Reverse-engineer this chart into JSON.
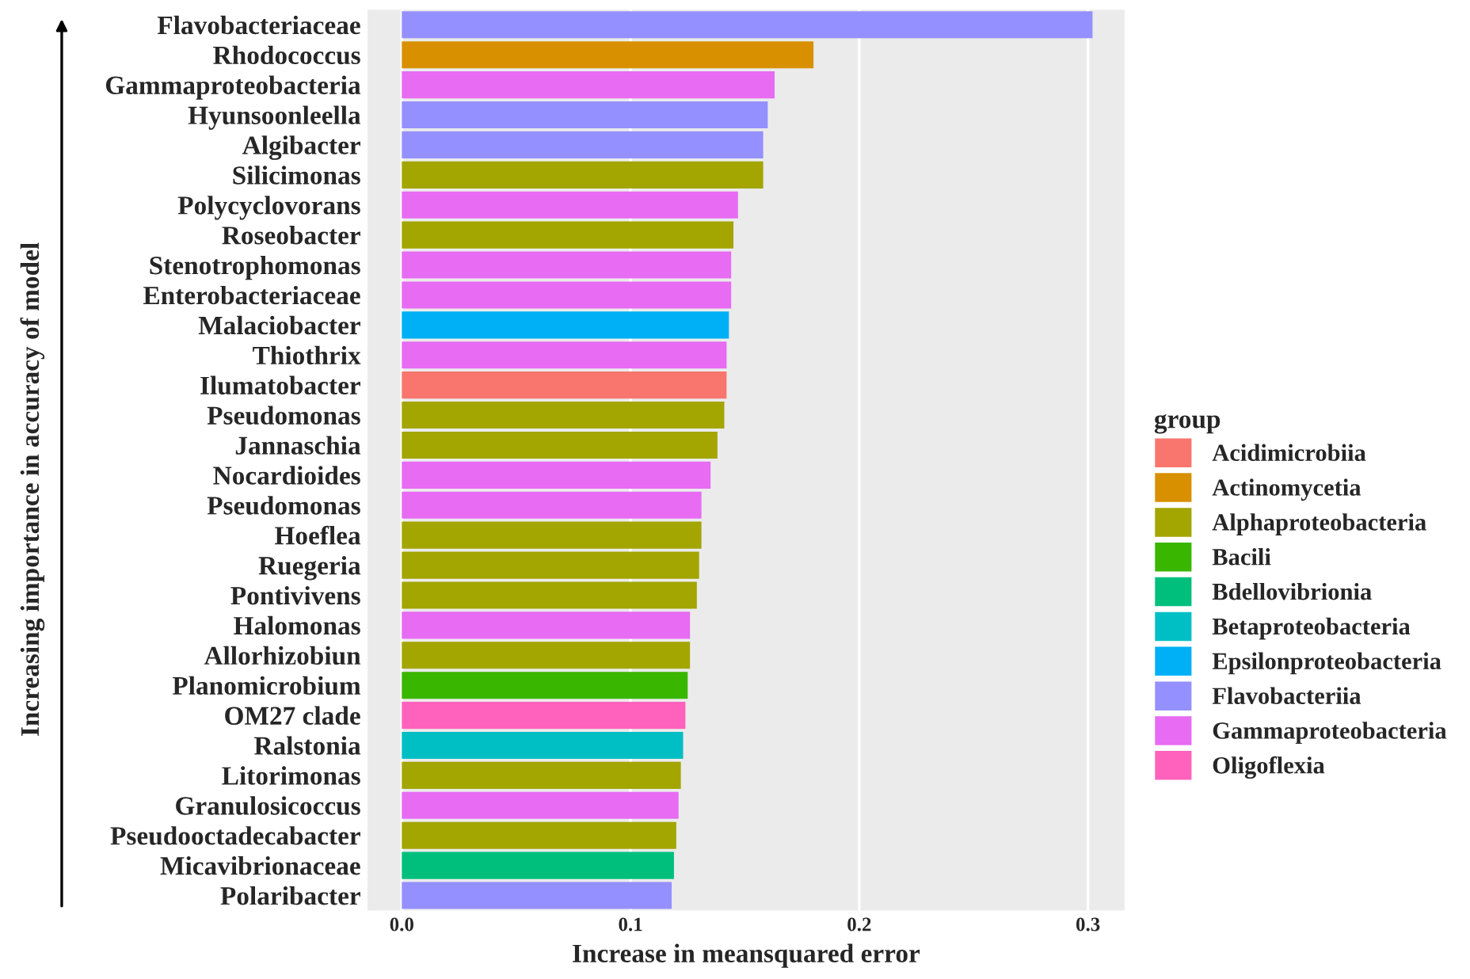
{
  "chart_data": {
    "type": "bar",
    "orientation": "horizontal",
    "xlabel": "Increase in meansquared error",
    "ylabel": "Increasing importance in accuracy of model",
    "legend_title": "group",
    "legend": "right",
    "grid": "x",
    "categories": [
      "Flavobacteriaceae",
      "Rhodococcus",
      "Gammaproteobacteria",
      "Hyunsoonleella",
      "Algibacter",
      "Silicimonas",
      "Polycyclovorans",
      "Roseobacter",
      "Stenotrophomonas",
      "Enterobacteriaceae",
      "Malaciobacter",
      "Thiothrix",
      "Ilumatobacter",
      "Pseudomonas",
      "Jannaschia",
      "Nocardioides",
      "Pseudomonas",
      "Hoeflea",
      "Ruegeria",
      "Pontivivens",
      "Halomonas",
      "Allorhizobiun",
      "Planomicrobium",
      "OM27 clade",
      "Ralstonia",
      "Litorimonas",
      "Granulosicoccus",
      "Pseudooctadecabacter",
      "Micavibrionaceae",
      "Polaribacter"
    ],
    "xlim": [
      -0.015,
      0.316
    ],
    "xticks": [
      {
        "value": 0,
        "label": "0.0"
      },
      0.1,
      0.2,
      0.3
    ],
    "series": [
      {
        "name": "Acidimicrobiia",
        "color": "#f8766d",
        "values": [
          null,
          null,
          null,
          null,
          null,
          null,
          null,
          null,
          null,
          null,
          null,
          null,
          0.142,
          null,
          null,
          null,
          null,
          null,
          null,
          null,
          null,
          null,
          null,
          null,
          null,
          null,
          null,
          null,
          null,
          null
        ]
      },
      {
        "name": "Actinomycetia",
        "color": "#d89000",
        "values": [
          null,
          0.18,
          null,
          null,
          null,
          null,
          null,
          null,
          null,
          null,
          null,
          null,
          null,
          null,
          null,
          null,
          null,
          null,
          null,
          null,
          null,
          null,
          null,
          null,
          null,
          null,
          null,
          null,
          null,
          null
        ]
      },
      {
        "name": "Alphaproteobacteria",
        "color": "#a3a500",
        "values": [
          null,
          null,
          null,
          null,
          null,
          0.158,
          null,
          0.145,
          null,
          null,
          null,
          null,
          null,
          0.141,
          0.138,
          null,
          null,
          0.131,
          0.13,
          0.129,
          null,
          0.126,
          null,
          null,
          null,
          0.122,
          null,
          0.12,
          null,
          null
        ]
      },
      {
        "name": "Bacili",
        "color": "#39b600",
        "values": [
          null,
          null,
          null,
          null,
          null,
          null,
          null,
          null,
          null,
          null,
          null,
          null,
          null,
          null,
          null,
          null,
          null,
          null,
          null,
          null,
          null,
          null,
          0.125,
          null,
          null,
          null,
          null,
          null,
          null,
          null
        ]
      },
      {
        "name": "Bdellovibrionia",
        "color": "#00bf7d",
        "values": [
          null,
          null,
          null,
          null,
          null,
          null,
          null,
          null,
          null,
          null,
          null,
          null,
          null,
          null,
          null,
          null,
          null,
          null,
          null,
          null,
          null,
          null,
          null,
          null,
          null,
          null,
          null,
          null,
          0.119,
          null
        ]
      },
      {
        "name": "Betaproteobacteria",
        "color": "#00bfc4",
        "values": [
          null,
          null,
          null,
          null,
          null,
          null,
          null,
          null,
          null,
          null,
          null,
          null,
          null,
          null,
          null,
          null,
          null,
          null,
          null,
          null,
          null,
          null,
          null,
          null,
          0.123,
          null,
          null,
          null,
          null,
          null
        ]
      },
      {
        "name": "Epsilonproteobacteria",
        "color": "#00b0f6",
        "values": [
          null,
          null,
          null,
          null,
          null,
          null,
          null,
          null,
          null,
          null,
          0.143,
          null,
          null,
          null,
          null,
          null,
          null,
          null,
          null,
          null,
          null,
          null,
          null,
          null,
          null,
          null,
          null,
          null,
          null,
          null
        ]
      },
      {
        "name": "Flavobacteriia",
        "color": "#9590ff",
        "values": [
          0.302,
          null,
          null,
          0.16,
          0.158,
          null,
          null,
          null,
          null,
          null,
          null,
          null,
          null,
          null,
          null,
          null,
          null,
          null,
          null,
          null,
          null,
          null,
          null,
          null,
          null,
          null,
          null,
          null,
          null,
          0.118
        ]
      },
      {
        "name": "Gammaproteobacteria",
        "color": "#e76bf3",
        "values": [
          null,
          null,
          0.163,
          null,
          null,
          null,
          0.147,
          null,
          0.144,
          0.144,
          null,
          0.142,
          null,
          null,
          null,
          0.135,
          0.131,
          null,
          null,
          null,
          0.126,
          null,
          null,
          null,
          null,
          null,
          0.121,
          null,
          null,
          null
        ]
      },
      {
        "name": "Oligoflexia",
        "color": "#ff62bc",
        "values": [
          null,
          null,
          null,
          null,
          null,
          null,
          null,
          null,
          null,
          null,
          null,
          null,
          null,
          null,
          null,
          null,
          null,
          null,
          null,
          null,
          null,
          null,
          null,
          0.124,
          null,
          null,
          null,
          null,
          null,
          null
        ]
      }
    ]
  }
}
